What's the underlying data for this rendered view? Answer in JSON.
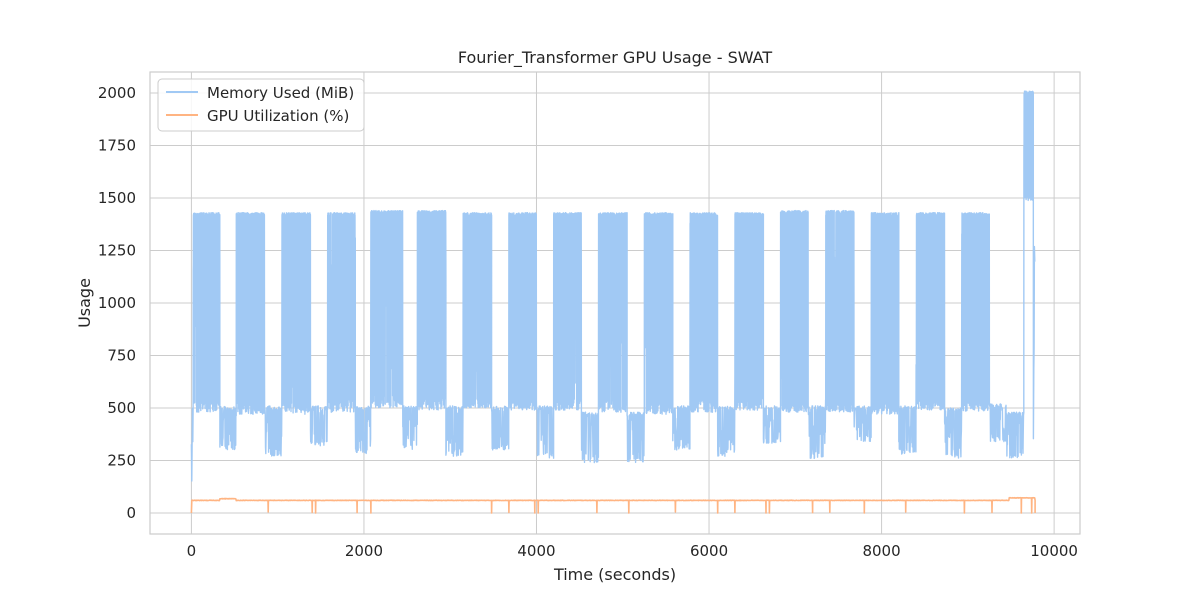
{
  "chart_data": {
    "type": "line",
    "title": "Fourier_Transformer GPU Usage - SWAT",
    "xlabel": "Time (seconds)",
    "ylabel": "Usage",
    "xlim": [
      -480,
      10300
    ],
    "ylim": [
      -100,
      2100
    ],
    "x_ticks": [
      0,
      2000,
      4000,
      6000,
      8000,
      10000
    ],
    "y_ticks": [
      0,
      250,
      500,
      750,
      1000,
      1250,
      1500,
      1750,
      2000
    ],
    "grid": true,
    "legend_position": "top-left",
    "series": [
      {
        "name": "Memory Used (MiB)",
        "color": "#a1c9f4",
        "segments": [
          {
            "start": 0,
            "end": 20,
            "mode": "init",
            "low": 0,
            "high": 500
          },
          {
            "start": 20,
            "end": 330,
            "mode": "burst",
            "low": 480,
            "high": 1430
          },
          {
            "start": 330,
            "end": 520,
            "mode": "base",
            "low": 300,
            "high": 510
          },
          {
            "start": 520,
            "end": 850,
            "mode": "burst",
            "low": 470,
            "high": 1430
          },
          {
            "start": 850,
            "end": 1050,
            "mode": "base",
            "low": 270,
            "high": 510
          },
          {
            "start": 1050,
            "end": 1380,
            "mode": "burst",
            "low": 470,
            "high": 1430
          },
          {
            "start": 1380,
            "end": 1580,
            "mode": "base",
            "low": 320,
            "high": 510
          },
          {
            "start": 1580,
            "end": 1900,
            "mode": "burst",
            "low": 480,
            "high": 1430
          },
          {
            "start": 1900,
            "end": 2080,
            "mode": "base",
            "low": 280,
            "high": 510
          },
          {
            "start": 2080,
            "end": 2450,
            "mode": "burst",
            "low": 500,
            "high": 1440
          },
          {
            "start": 2450,
            "end": 2620,
            "mode": "base",
            "low": 300,
            "high": 510
          },
          {
            "start": 2620,
            "end": 2950,
            "mode": "burst",
            "low": 490,
            "high": 1440
          },
          {
            "start": 2950,
            "end": 3150,
            "mode": "base",
            "low": 270,
            "high": 510
          },
          {
            "start": 3150,
            "end": 3480,
            "mode": "burst",
            "low": 500,
            "high": 1430
          },
          {
            "start": 3480,
            "end": 3680,
            "mode": "base",
            "low": 300,
            "high": 510
          },
          {
            "start": 3680,
            "end": 4000,
            "mode": "burst",
            "low": 490,
            "high": 1430
          },
          {
            "start": 4000,
            "end": 4200,
            "mode": "base",
            "low": 260,
            "high": 510
          },
          {
            "start": 4200,
            "end": 4520,
            "mode": "burst",
            "low": 490,
            "high": 1430
          },
          {
            "start": 4520,
            "end": 4720,
            "mode": "base",
            "low": 240,
            "high": 480
          },
          {
            "start": 4720,
            "end": 5050,
            "mode": "burst",
            "low": 480,
            "high": 1430
          },
          {
            "start": 5050,
            "end": 5250,
            "mode": "base",
            "low": 240,
            "high": 480
          },
          {
            "start": 5250,
            "end": 5580,
            "mode": "burst",
            "low": 470,
            "high": 1430
          },
          {
            "start": 5580,
            "end": 5780,
            "mode": "base",
            "low": 300,
            "high": 510
          },
          {
            "start": 5780,
            "end": 6100,
            "mode": "burst",
            "low": 480,
            "high": 1430
          },
          {
            "start": 6100,
            "end": 6300,
            "mode": "base",
            "low": 270,
            "high": 510
          },
          {
            "start": 6300,
            "end": 6630,
            "mode": "burst",
            "low": 490,
            "high": 1430
          },
          {
            "start": 6630,
            "end": 6830,
            "mode": "base",
            "low": 330,
            "high": 510
          },
          {
            "start": 6830,
            "end": 7150,
            "mode": "burst",
            "low": 480,
            "high": 1440
          },
          {
            "start": 7150,
            "end": 7350,
            "mode": "base",
            "low": 260,
            "high": 510
          },
          {
            "start": 7350,
            "end": 7680,
            "mode": "burst",
            "low": 480,
            "high": 1440
          },
          {
            "start": 7680,
            "end": 7880,
            "mode": "base",
            "low": 340,
            "high": 510
          },
          {
            "start": 7880,
            "end": 8200,
            "mode": "burst",
            "low": 470,
            "high": 1430
          },
          {
            "start": 8200,
            "end": 8400,
            "mode": "base",
            "low": 280,
            "high": 510
          },
          {
            "start": 8400,
            "end": 8730,
            "mode": "burst",
            "low": 490,
            "high": 1430
          },
          {
            "start": 8730,
            "end": 8930,
            "mode": "base",
            "low": 260,
            "high": 500
          },
          {
            "start": 8930,
            "end": 9250,
            "mode": "burst",
            "low": 480,
            "high": 1430
          },
          {
            "start": 9250,
            "end": 9450,
            "mode": "base",
            "low": 340,
            "high": 520
          },
          {
            "start": 9450,
            "end": 9650,
            "mode": "base",
            "low": 260,
            "high": 480
          },
          {
            "start": 9650,
            "end": 9760,
            "mode": "burst",
            "low": 1480,
            "high": 2010
          },
          {
            "start": 9760,
            "end": 9780,
            "mode": "tail",
            "low": 180,
            "high": 1400
          }
        ]
      },
      {
        "name": "GPU Utilization (%)",
        "color": "#ffb482",
        "baseline": 60,
        "baseline_start": 0,
        "baseline_end": 9780,
        "plateaus": [
          {
            "start": 330,
            "end": 520,
            "value": 68
          },
          {
            "start": 9480,
            "end": 9780,
            "value": 72
          }
        ],
        "dips": [
          {
            "x": 890,
            "value": 5
          },
          {
            "x": 1400,
            "value": 3
          },
          {
            "x": 1440,
            "value": 0
          },
          {
            "x": 1920,
            "value": 2
          },
          {
            "x": 2080,
            "value": 0
          },
          {
            "x": 3480,
            "value": 0
          },
          {
            "x": 3680,
            "value": 3
          },
          {
            "x": 3980,
            "value": 0
          },
          {
            "x": 4020,
            "value": 0
          },
          {
            "x": 4700,
            "value": 2
          },
          {
            "x": 5070,
            "value": 0
          },
          {
            "x": 5610,
            "value": 5
          },
          {
            "x": 6100,
            "value": 0
          },
          {
            "x": 6300,
            "value": 3
          },
          {
            "x": 6660,
            "value": 0
          },
          {
            "x": 6700,
            "value": 0
          },
          {
            "x": 7200,
            "value": 2
          },
          {
            "x": 7400,
            "value": 4
          },
          {
            "x": 7800,
            "value": 0
          },
          {
            "x": 8280,
            "value": 5
          },
          {
            "x": 8960,
            "value": 0
          },
          {
            "x": 9280,
            "value": 3
          },
          {
            "x": 9620,
            "value": 0
          },
          {
            "x": 9740,
            "value": 0
          }
        ]
      }
    ]
  }
}
